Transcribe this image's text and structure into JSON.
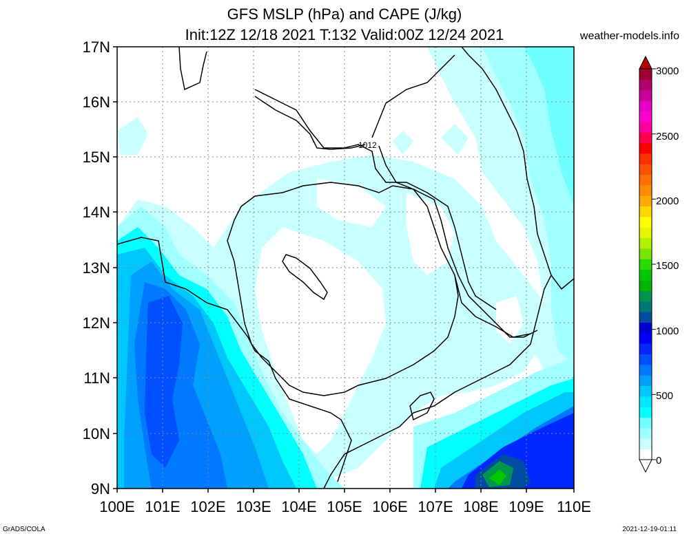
{
  "title_line1": "GFS MSLP (hPa) and CAPE (J/kg)",
  "title_line2": "Init:12Z 12/18 2021 T:132 Valid:00Z 12/24 2021",
  "site": "weather-models.info",
  "footer_left": "GrADS/COLA",
  "footer_right": "2021-12-19-01:11",
  "isobar_label": "1012",
  "lat_labels": [
    "17N",
    "16N",
    "15N",
    "14N",
    "13N",
    "12N",
    "11N",
    "10N",
    "9N"
  ],
  "lon_labels": [
    "100E",
    "101E",
    "102E",
    "103E",
    "104E",
    "105E",
    "106E",
    "107E",
    "108E",
    "109E",
    "110E"
  ],
  "colorbar": {
    "labels": [
      "3000",
      "2500",
      "2000",
      "1500",
      "1000",
      "500",
      "0"
    ],
    "colors": [
      "#ffffff",
      "#c8ffff",
      "#a0ffff",
      "#70ffff",
      "#00ffff",
      "#00e8ff",
      "#00c8ff",
      "#00a0ff",
      "#0078ff",
      "#0050ff",
      "#0028ff",
      "#0000ff",
      "#0000d0",
      "#004ca0",
      "#007878",
      "#009650",
      "#00b400",
      "#00c800",
      "#28dc00",
      "#78e600",
      "#b4f000",
      "#e6f500",
      "#ffff00",
      "#ffd700",
      "#ffaa00",
      "#ff8c00",
      "#ff7000",
      "#ff5000",
      "#ff3000",
      "#ff0000",
      "#ff0050",
      "#ff00a0",
      "#ff00d0",
      "#e600c8",
      "#c8009a",
      "#b4006e",
      "#a00032"
    ],
    "top_color": "#b40000"
  }
}
